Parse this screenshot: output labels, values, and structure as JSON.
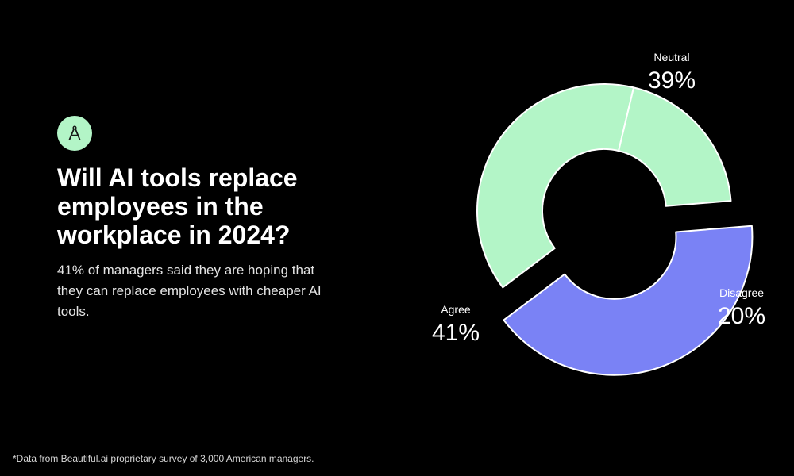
{
  "logo": {
    "icon": "compass-icon",
    "color": "#b3f5c7"
  },
  "title": "Will AI tools replace employees in the workplace in 2024?",
  "subtitle": "41% of managers said they are hoping that they can replace employees with cheaper AI tools.",
  "footnote": "*Data from Beautiful.ai proprietary survey of 3,000 American managers.",
  "chart_data": {
    "type": "pie",
    "variant": "donut",
    "slices": [
      {
        "label": "Neutral",
        "value": 39,
        "display": "39%",
        "color": "#b3f5c7",
        "exploded": false
      },
      {
        "label": "Disagree",
        "value": 20,
        "display": "20%",
        "color": "#b3f5c7",
        "exploded": false
      },
      {
        "label": "Agree",
        "value": 41,
        "display": "41%",
        "color": "#7a82f5",
        "exploded": true
      }
    ]
  }
}
